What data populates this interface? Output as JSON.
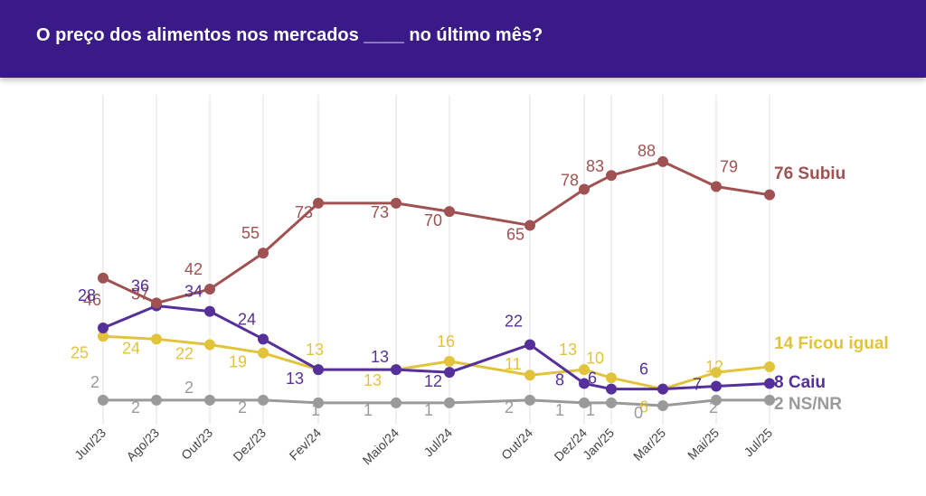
{
  "header": {
    "title": "O preço dos alimentos nos mercados ____ no último mês?"
  },
  "chart_data": {
    "type": "line",
    "title": "O preço dos alimentos nos mercados ____ no último mês?",
    "x": [
      "Jun/23",
      "Ago/23",
      "Out/23",
      "Dez/23",
      "Fev/24",
      "Maio/24",
      "Jul/24",
      "Out/24",
      "Dez/24",
      "Jan/25",
      "Mar/25",
      "Mai/25",
      "Jul/25"
    ],
    "x_ticks": [
      "Jun/23",
      "Ago/23",
      "Out/23",
      "Dez/23",
      "Fev/24",
      "Maio/24",
      "Jul/24",
      "Out/24",
      "Dez/24",
      "Jan/25",
      "Mar/25",
      "Mai/25",
      "Jul/25"
    ],
    "series": [
      {
        "name": "Subiu",
        "color": "#a05252",
        "x": [
          0,
          1,
          2,
          3,
          4,
          5,
          6,
          7,
          8,
          9,
          10,
          11,
          12
        ],
        "values": [
          46,
          37,
          42,
          55,
          73,
          73,
          70,
          65,
          78,
          83,
          88,
          79,
          76
        ],
        "end_label": "76 Subiu"
      },
      {
        "name": "Caiu",
        "color": "#55309a",
        "x": [
          0,
          1,
          2,
          3,
          4,
          5,
          6,
          7,
          8,
          9,
          10,
          11,
          12
        ],
        "values": [
          28,
          36,
          34,
          24,
          13,
          13,
          12,
          22,
          8,
          6,
          6,
          7,
          8
        ],
        "end_label": "8 Caiu"
      },
      {
        "name": "Ficou igual",
        "color": "#e2c43c",
        "x": [
          0,
          1,
          2,
          3,
          4,
          5,
          6,
          7,
          8,
          9,
          10,
          11,
          12
        ],
        "values": [
          25,
          24,
          22,
          19,
          13,
          13,
          16,
          11,
          13,
          10,
          6,
          12,
          14
        ],
        "end_label": "14 Ficou igual"
      },
      {
        "name": "NS/NR",
        "color": "#9a9a9a",
        "x": [
          0,
          1,
          2,
          3,
          4,
          5,
          6,
          7,
          8,
          9,
          10,
          11,
          12
        ],
        "values": [
          2,
          2,
          2,
          2,
          1,
          1,
          1,
          2,
          1,
          1,
          0,
          2,
          2
        ],
        "end_label": "2 NS/NR"
      }
    ],
    "ylim": [
      0,
      100
    ],
    "grid": "vertical",
    "legend": "end-of-line labels"
  }
}
